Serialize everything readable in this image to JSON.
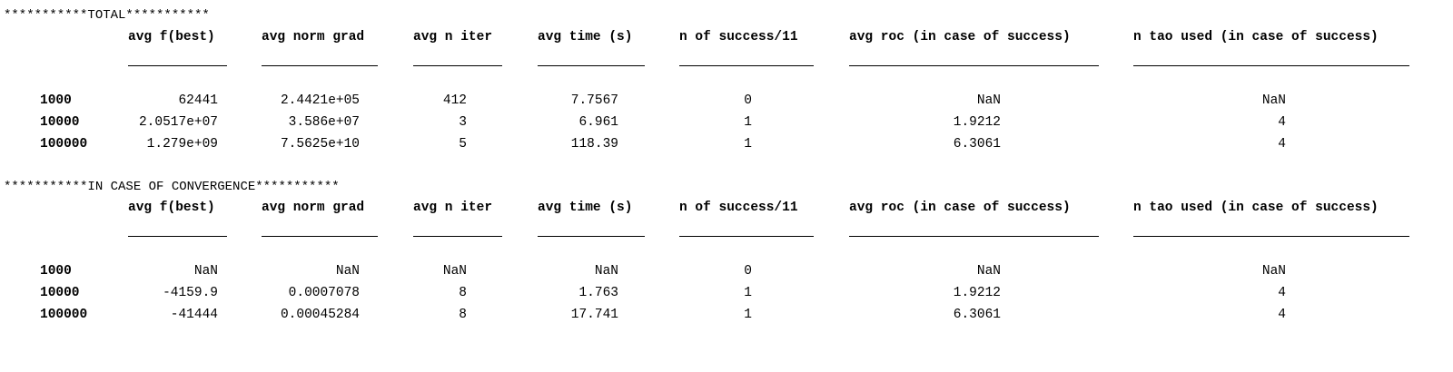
{
  "columns": [
    "avg f(best)",
    "avg norm grad",
    "avg n iter",
    "avg time (s)",
    "n of success/11",
    "avg roc (in case of success)",
    "n tao used (in case of success)"
  ],
  "tables": [
    {
      "title": "***********TOTAL***********",
      "rows": [
        {
          "label": "1000",
          "values": [
            "62441",
            "2.4421e+05",
            "412",
            "7.7567",
            "0",
            "NaN",
            "NaN"
          ]
        },
        {
          "label": "10000",
          "values": [
            "2.0517e+07",
            "3.586e+07",
            "3",
            "6.961",
            "1",
            "1.9212",
            "4"
          ]
        },
        {
          "label": "100000",
          "values": [
            "1.279e+09",
            "7.5625e+10",
            "5",
            "118.39",
            "1",
            "6.3061",
            "4"
          ]
        }
      ]
    },
    {
      "title": "***********IN CASE OF CONVERGENCE***********",
      "rows": [
        {
          "label": "1000",
          "values": [
            "NaN",
            "NaN",
            "NaN",
            "NaN",
            "0",
            "NaN",
            "NaN"
          ]
        },
        {
          "label": "10000",
          "values": [
            "-4159.9",
            "0.0007078",
            "8",
            "1.763",
            "1",
            "1.9212",
            "4"
          ]
        },
        {
          "label": "100000",
          "values": [
            "-41444",
            "0.00045284",
            "8",
            "17.741",
            "1",
            "6.3061",
            "4"
          ]
        }
      ]
    }
  ]
}
